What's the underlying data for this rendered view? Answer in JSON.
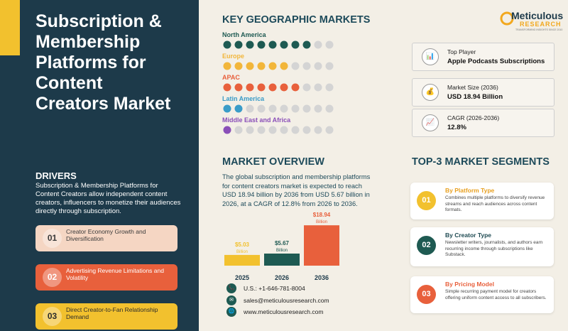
{
  "title": "Subscription & Membership Platforms for Content Creators Market",
  "drivers": {
    "heading": "DRIVERS",
    "text": "Subscription & Membership Platforms for Content Creators allow independent content creators, influencers to monetize their audiences directly through subscription.",
    "items": [
      {
        "number": "01",
        "text": "Creator Economy Growth and Diversification",
        "color": "#f5d6c3",
        "text_color": "#3a3a3a"
      },
      {
        "number": "02",
        "text": "Advertising Revenue Limitations and Volatility",
        "color": "#e8603c",
        "text_color": "#ffffff"
      },
      {
        "number": "03",
        "text": "Direct Creator-to-Fan Relationship Demand",
        "color": "#f2c12e",
        "text_color": "#2b2b2b"
      }
    ]
  },
  "markets": {
    "heading": "KEY GEOGRAPHIC MARKETS",
    "xlim": [
      0,
      10
    ],
    "regions": [
      {
        "name": "North America",
        "color": "#1e5a52",
        "value": 8
      },
      {
        "name": "Europe",
        "color": "#f2b63a",
        "value": 6
      },
      {
        "name": "APAC",
        "color": "#e8603c",
        "value": 7
      },
      {
        "name": "Latin America",
        "color": "#3a9cc8",
        "value": 2
      },
      {
        "name": "Middle East and Africa",
        "color": "#8a4fb8",
        "value": 1
      }
    ]
  },
  "logo": {
    "name": "Meticulous",
    "sub": "RESEARCH",
    "tagline": "TRANSFORMING INSIGHTS SINCE 2010"
  },
  "stats": [
    {
      "icon": "📊",
      "label": "Top Player",
      "value": "Apple Podcasts Subscriptions"
    },
    {
      "icon": "💰",
      "label": "Market Size (2036)",
      "value": "USD 18.94 Billion"
    },
    {
      "icon": "📈",
      "label": "CAGR (2026-2036)",
      "value": "12.8%"
    }
  ],
  "overview": {
    "heading": "MARKET OVERVIEW",
    "text": "The global subscription and membership platforms for content creators market is expected to reach USD 18.94 billion by 2036 from USD 5.67 billion in 2026, at a CAGR of 12.8% from 2026 to 2036."
  },
  "chart_data": {
    "type": "bar",
    "categories": [
      "2025",
      "2026",
      "2036"
    ],
    "values": [
      5.03,
      5.67,
      18.94
    ],
    "value_labels": [
      "$5.03",
      "$5.67",
      "$18.94"
    ],
    "value_unit": "Billion",
    "colors": [
      "#f2c12e",
      "#1e5a52",
      "#e8603c"
    ],
    "ylim": [
      0,
      20
    ]
  },
  "contacts": [
    {
      "icon": "📞",
      "text": "U.S.: +1-646-781-8004"
    },
    {
      "icon": "✉",
      "text": "sales@meticulousresearch.com"
    },
    {
      "icon": "🌐",
      "text": "www.meticulousresearch.com"
    }
  ],
  "segments": {
    "heading": "TOP-3 MARKET SEGMENTS",
    "items": [
      {
        "number": "01",
        "title": "By Platform Type",
        "text": "Combines multiple platforms to diversify revenue streams and reach audiences across content formats.",
        "color": "#f2c12e",
        "title_color": "#e8a020"
      },
      {
        "number": "02",
        "title": "By Creator Type",
        "text": "Newsletter writers, journalists, and authors earn recurring income through subscriptions like Substack.",
        "color": "#1e5a52",
        "title_color": "#1e4a52"
      },
      {
        "number": "03",
        "title": "By Pricing Model",
        "text": "Simple recurring payment model for creators offering uniform content access to all subscribers.",
        "color": "#e8603c",
        "title_color": "#e8603c"
      }
    ]
  }
}
